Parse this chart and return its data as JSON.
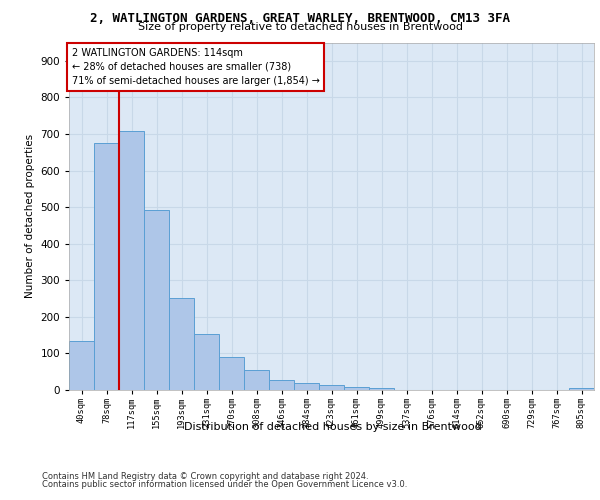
{
  "title": "2, WATLINGTON GARDENS, GREAT WARLEY, BRENTWOOD, CM13 3FA",
  "subtitle": "Size of property relative to detached houses in Brentwood",
  "xlabel": "Distribution of detached houses by size in Brentwood",
  "ylabel": "Number of detached properties",
  "bar_labels": [
    "40sqm",
    "78sqm",
    "117sqm",
    "155sqm",
    "193sqm",
    "231sqm",
    "270sqm",
    "308sqm",
    "346sqm",
    "384sqm",
    "423sqm",
    "461sqm",
    "499sqm",
    "537sqm",
    "576sqm",
    "614sqm",
    "652sqm",
    "690sqm",
    "729sqm",
    "767sqm",
    "805sqm"
  ],
  "bar_values": [
    135,
    675,
    707,
    493,
    252,
    153,
    90,
    55,
    27,
    19,
    14,
    9,
    5,
    1,
    1,
    0,
    0,
    0,
    0,
    0,
    5
  ],
  "bar_color": "#aec6e8",
  "bar_edge_color": "#5a9fd4",
  "property_line_x": 1.5,
  "property_line_label": "2 WATLINGTON GARDENS: 114sqm",
  "annotation_line1": "← 28% of detached houses are smaller (738)",
  "annotation_line2": "71% of semi-detached houses are larger (1,854) →",
  "annotation_box_color": "#ffffff",
  "annotation_box_edge_color": "#cc0000",
  "property_line_color": "#cc0000",
  "ylim": [
    0,
    950
  ],
  "yticks": [
    0,
    100,
    200,
    300,
    400,
    500,
    600,
    700,
    800,
    900
  ],
  "grid_color": "#c8d8e8",
  "background_color": "#dce8f5",
  "footer_line1": "Contains HM Land Registry data © Crown copyright and database right 2024.",
  "footer_line2": "Contains public sector information licensed under the Open Government Licence v3.0."
}
